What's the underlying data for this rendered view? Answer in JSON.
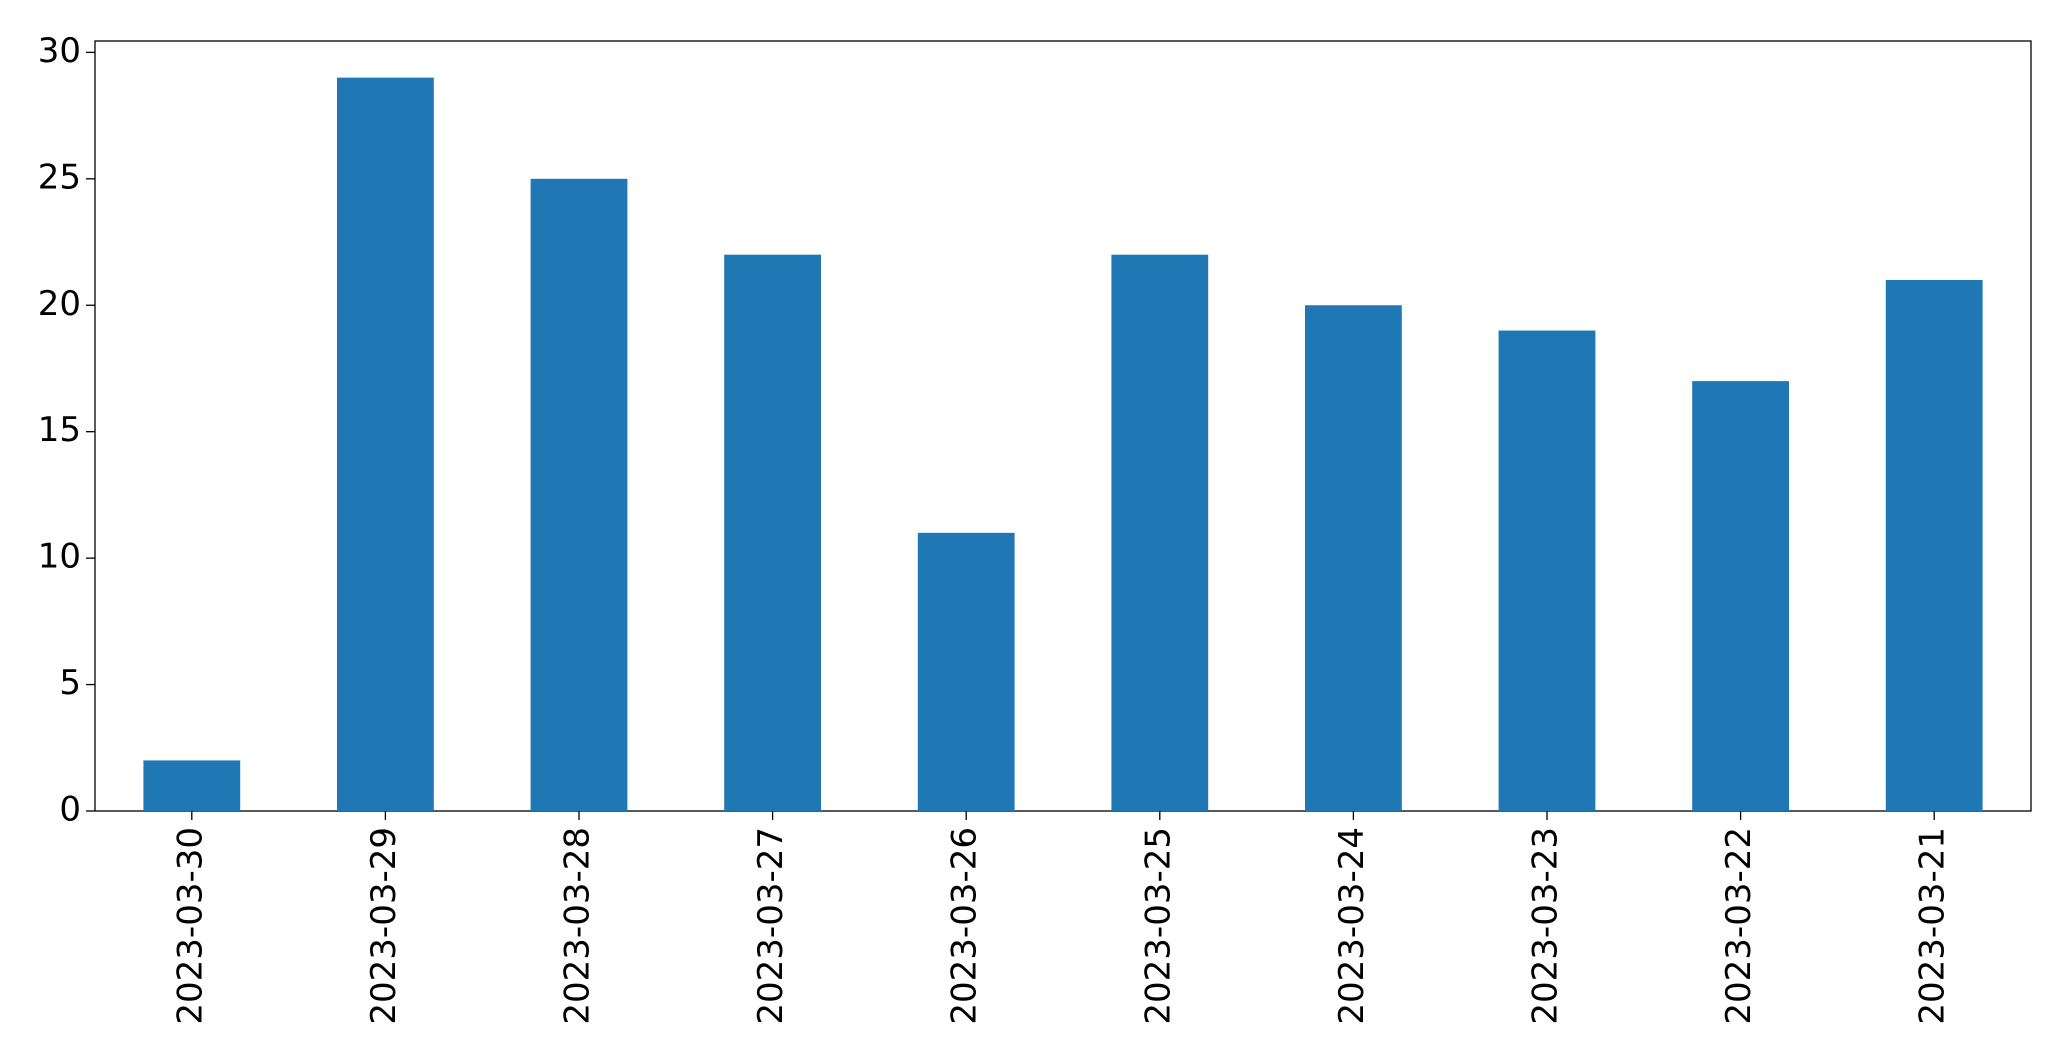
{
  "chart_data": {
    "type": "bar",
    "categories": [
      "2023-03-30",
      "2023-03-29",
      "2023-03-28",
      "2023-03-27",
      "2023-03-26",
      "2023-03-25",
      "2023-03-24",
      "2023-03-23",
      "2023-03-22",
      "2023-03-21"
    ],
    "values": [
      2,
      29,
      25,
      22,
      11,
      22,
      20,
      19,
      17,
      21
    ],
    "color": "#1f77b4",
    "ylim": [
      0,
      30.45
    ],
    "yticks": [
      0,
      5,
      10,
      15,
      20,
      25,
      30
    ],
    "grid": false
  }
}
